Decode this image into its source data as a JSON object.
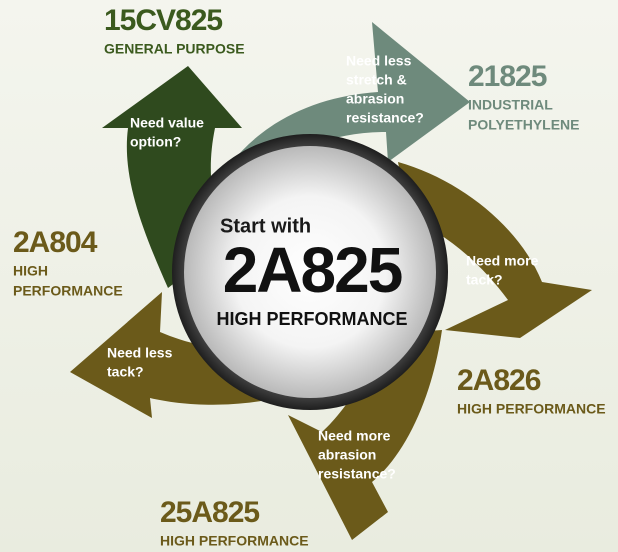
{
  "center": {
    "lead": "Start with",
    "code": "2A825",
    "desc": "HIGH PERFORMANCE"
  },
  "questions": [
    {
      "lines": [
        "Need value",
        "option?"
      ]
    },
    {
      "lines": [
        "Need less",
        "stretch &",
        "abrasion",
        "resistance?"
      ]
    },
    {
      "lines": [
        "Need more",
        "tack?"
      ]
    },
    {
      "lines": [
        "Need more",
        "abrasion",
        "resistance?"
      ]
    },
    {
      "lines": [
        "Need less",
        "tack?"
      ]
    }
  ],
  "products": [
    {
      "code": "15CV825",
      "desc": [
        "GENERAL PURPOSE"
      ]
    },
    {
      "code": "21825",
      "desc": [
        "INDUSTRIAL",
        "POLYETHYLENE"
      ]
    },
    {
      "code": "2A826",
      "desc": [
        "HIGH PERFORMANCE"
      ]
    },
    {
      "code": "25A825",
      "desc": [
        "HIGH PERFORMANCE"
      ]
    },
    {
      "code": "2A804",
      "desc": [
        "HIGH",
        "PERFORMANCE"
      ]
    }
  ]
}
